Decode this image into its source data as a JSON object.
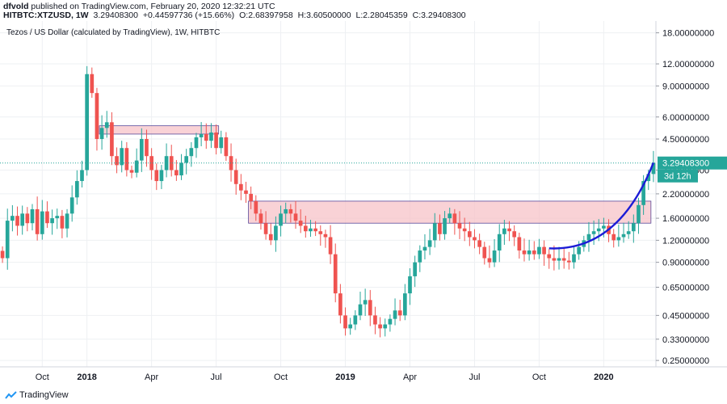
{
  "header": {
    "publisher": "dfvold",
    "published_text": " published on TradingView.com, February 20, 2020 12:32:21 UTC",
    "symbol": "HITBTC:XTZUSD, 1W",
    "last": "3.29408300",
    "change": "+0.44597736 (+15.66%)",
    "open": "2.68397958",
    "high": "3.60500000",
    "low": "2.28045359",
    "close": "3.29408300",
    "o_label": "O:",
    "h_label": "H:",
    "l_label": "L:",
    "c_label": "C:"
  },
  "footer": {
    "brand": "TradingView"
  },
  "colors": {
    "up": "#26a69a",
    "down": "#ef5350",
    "zone_fill": "#f7c3c8",
    "zone_stroke": "#5a4a9a",
    "curve": "#1c1cd6",
    "price_line": "#26a69a",
    "grid": "#eef0f3"
  },
  "chart_data": {
    "type": "candlestick",
    "title": "Tezos / US Dollar (calculated by TradingView), 1W, HITBTC",
    "y_scale": "log",
    "ylim": [
      0.23,
      21
    ],
    "y_ticks": [
      {
        "value": 18,
        "label": "18.00000000"
      },
      {
        "value": 12,
        "label": "12.00000000"
      },
      {
        "value": 9,
        "label": "9.00000000"
      },
      {
        "value": 6,
        "label": "6.00000000"
      },
      {
        "value": 4.5,
        "label": "4.50000000"
      },
      {
        "value": 3,
        "label": "3.00000000"
      },
      {
        "value": 2.2,
        "label": "2.20000000"
      },
      {
        "value": 1.6,
        "label": "1.60000000"
      },
      {
        "value": 1.2,
        "label": "1.20000000"
      },
      {
        "value": 0.9,
        "label": "0.90000000"
      },
      {
        "value": 0.65,
        "label": "0.65000000"
      },
      {
        "value": 0.45,
        "label": "0.45000000"
      },
      {
        "value": 0.33,
        "label": "0.33000000"
      },
      {
        "value": 0.25,
        "label": "0.25000000"
      }
    ],
    "x_ticks": [
      {
        "label": "Oct",
        "week": 8,
        "bold": false
      },
      {
        "label": "2018",
        "week": 17,
        "bold": true
      },
      {
        "label": "Apr",
        "week": 30,
        "bold": false
      },
      {
        "label": "Jul",
        "week": 43,
        "bold": false
      },
      {
        "label": "Oct",
        "week": 56,
        "bold": false
      },
      {
        "label": "2019",
        "week": 69,
        "bold": true
      },
      {
        "label": "Apr",
        "week": 82,
        "bold": false
      },
      {
        "label": "Jul",
        "week": 95,
        "bold": false
      },
      {
        "label": "Oct",
        "week": 108,
        "bold": false
      },
      {
        "label": "2020",
        "week": 121,
        "bold": true
      }
    ],
    "weeks_total": 132,
    "closes": [
      0.95,
      1.55,
      1.65,
      1.45,
      1.7,
      1.5,
      1.8,
      1.3,
      1.75,
      1.5,
      1.6,
      1.65,
      1.4,
      1.7,
      2.1,
      2.6,
      3.0,
      10.5,
      8.2,
      4.5,
      5.2,
      5.6,
      3.6,
      3.2,
      4.0,
      3.0,
      2.9,
      3.4,
      4.5,
      3.6,
      3.0,
      2.6,
      3.0,
      3.6,
      3.0,
      2.8,
      3.3,
      3.6,
      4.0,
      4.6,
      4.8,
      4.4,
      4.9,
      4.0,
      4.6,
      3.6,
      3.0,
      2.5,
      2.3,
      2.2,
      2.0,
      1.7,
      1.5,
      1.3,
      1.2,
      1.45,
      1.7,
      1.8,
      1.7,
      1.55,
      1.45,
      1.35,
      1.4,
      1.35,
      1.3,
      1.25,
      1.0,
      0.6,
      0.45,
      0.38,
      0.4,
      0.45,
      0.52,
      0.55,
      0.45,
      0.4,
      0.38,
      0.4,
      0.43,
      0.48,
      0.45,
      0.6,
      0.75,
      0.9,
      1.05,
      1.1,
      1.2,
      1.5,
      1.3,
      1.6,
      1.7,
      1.5,
      1.4,
      1.35,
      1.25,
      1.2,
      1.1,
      0.95,
      0.9,
      1.05,
      1.3,
      1.4,
      1.35,
      1.25,
      1.05,
      1.0,
      1.05,
      1.0,
      1.1,
      1.0,
      0.95,
      0.92,
      0.95,
      0.92,
      0.9,
      1.0,
      1.1,
      1.2,
      1.3,
      1.35,
      1.4,
      1.45,
      1.3,
      1.2,
      1.25,
      1.3,
      1.35,
      1.5,
      1.9,
      2.6,
      2.85,
      3.29
    ],
    "resistance_zones": [
      {
        "from_week": 20,
        "to_week": 43,
        "low": 4.8,
        "high": 5.35
      },
      {
        "from_week": 50,
        "to_week": 130,
        "low": 1.5,
        "high": 2.0
      }
    ],
    "curve_annotation": {
      "start_week": 110,
      "start_value": 1.08,
      "mid_week": 121,
      "end_week": 131,
      "end_value": 3.3
    },
    "last_price_label": "3.29408300",
    "countdown_label": "3d 12h"
  }
}
